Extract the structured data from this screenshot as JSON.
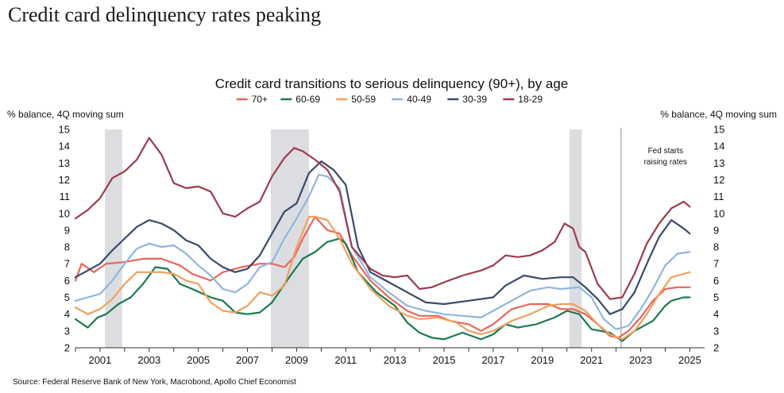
{
  "page": {
    "headline": "Credit card delinquency rates peaking",
    "source": "Source: Federal Reserve Bank of New York, Macrobond, Apollo Chief Economist"
  },
  "chart_data": {
    "type": "line",
    "title": "Credit card transitions to serious delinquency (90+), by age",
    "ylabel_left": "% balance, 4Q moving sum",
    "ylabel_right": "% balance, 4Q moving sum",
    "xlim": [
      2000.0,
      2025.6
    ],
    "ylim": [
      2,
      15
    ],
    "x_ticks": [
      2001,
      2003,
      2005,
      2007,
      2009,
      2011,
      2013,
      2015,
      2017,
      2019,
      2021,
      2023,
      2025
    ],
    "y_ticks": [
      2,
      3,
      4,
      5,
      6,
      7,
      8,
      9,
      10,
      11,
      12,
      13,
      14,
      15
    ],
    "recessions": [
      [
        2001.2,
        2001.9
      ],
      [
        2007.95,
        2009.5
      ],
      [
        2020.1,
        2020.6
      ]
    ],
    "annotation": {
      "x": 2022.2,
      "text": "Fed starts raising rates"
    },
    "legend_position": "top-center",
    "series": [
      {
        "name": "70+",
        "color": "#e8665a",
        "x": [
          2000.0,
          2000.25,
          2000.75,
          2001.25,
          2002.0,
          2002.75,
          2003.5,
          2004.25,
          2004.75,
          2005.5,
          2006.0,
          2006.75,
          2007.5,
          2008.0,
          2008.5,
          2008.9,
          2009.25,
          2009.75,
          2010.25,
          2010.75,
          2011.25,
          2012.0,
          2012.75,
          2013.5,
          2014.0,
          2014.75,
          2015.25,
          2016.0,
          2016.5,
          2017.0,
          2017.75,
          2018.5,
          2019.25,
          2019.75,
          2020.25,
          2020.75,
          2021.25,
          2021.75,
          2022.1,
          2022.5,
          2023.0,
          2023.5,
          2024.0,
          2024.5,
          2025.0
        ],
        "y": [
          6.0,
          7.0,
          6.5,
          7.0,
          7.1,
          7.3,
          7.3,
          6.9,
          6.4,
          6.0,
          6.5,
          6.8,
          7.0,
          7.0,
          6.8,
          7.4,
          8.5,
          9.8,
          9.0,
          8.8,
          7.5,
          6.0,
          5.0,
          4.2,
          3.9,
          3.9,
          3.6,
          3.4,
          3.0,
          3.4,
          4.3,
          4.6,
          4.6,
          4.3,
          4.3,
          4.0,
          3.4,
          2.7,
          2.6,
          3.0,
          3.8,
          4.8,
          5.5,
          5.6,
          5.6
        ]
      },
      {
        "name": "60-69",
        "color": "#1a7a4c",
        "x": [
          2000.0,
          2000.5,
          2000.9,
          2001.25,
          2001.75,
          2002.25,
          2002.75,
          2003.25,
          2003.75,
          2004.25,
          2004.75,
          2005.5,
          2006.0,
          2006.5,
          2007.0,
          2007.5,
          2008.0,
          2008.75,
          2009.25,
          2009.75,
          2010.25,
          2010.75,
          2011.0,
          2011.5,
          2012.25,
          2013.0,
          2013.5,
          2014.0,
          2014.5,
          2015.0,
          2015.75,
          2016.5,
          2017.0,
          2017.5,
          2018.0,
          2018.75,
          2019.5,
          2020.0,
          2020.5,
          2021.0,
          2021.75,
          2022.25,
          2022.75,
          2023.5,
          2024.0,
          2024.25,
          2024.75,
          2025.0
        ],
        "y": [
          3.7,
          3.2,
          3.8,
          4.0,
          4.6,
          5.0,
          5.8,
          6.8,
          6.7,
          5.8,
          5.5,
          5.0,
          4.8,
          4.1,
          4.0,
          4.1,
          4.7,
          6.3,
          7.3,
          7.7,
          8.3,
          8.5,
          8.2,
          6.5,
          5.3,
          4.5,
          3.5,
          2.9,
          2.6,
          2.5,
          2.9,
          2.5,
          2.8,
          3.4,
          3.2,
          3.4,
          3.8,
          4.2,
          4.0,
          3.1,
          2.9,
          2.4,
          3.0,
          3.6,
          4.5,
          4.8,
          5.0,
          5.0
        ]
      },
      {
        "name": "50-59",
        "color": "#f0a060",
        "x": [
          2000.0,
          2000.5,
          2001.0,
          2001.5,
          2002.0,
          2002.5,
          2003.0,
          2003.5,
          2004.0,
          2004.5,
          2005.0,
          2005.5,
          2006.0,
          2006.5,
          2007.0,
          2007.5,
          2008.0,
          2008.5,
          2009.0,
          2009.5,
          2009.75,
          2010.25,
          2010.75,
          2011.25,
          2012.0,
          2012.75,
          2013.5,
          2014.0,
          2014.75,
          2015.5,
          2016.0,
          2016.5,
          2017.0,
          2017.75,
          2018.5,
          2019.25,
          2019.75,
          2020.25,
          2020.75,
          2021.25,
          2021.75,
          2022.25,
          2022.75,
          2023.25,
          2023.75,
          2024.25,
          2024.75,
          2025.0
        ],
        "y": [
          4.4,
          4.0,
          4.3,
          4.9,
          5.8,
          6.5,
          6.5,
          6.5,
          6.4,
          6.0,
          5.8,
          4.7,
          4.2,
          4.1,
          4.5,
          5.3,
          5.1,
          5.7,
          8.0,
          9.8,
          9.8,
          9.6,
          8.5,
          7.0,
          5.5,
          4.5,
          3.9,
          3.7,
          3.8,
          3.5,
          3.0,
          2.8,
          3.0,
          3.6,
          4.0,
          4.5,
          4.6,
          4.6,
          4.2,
          3.4,
          2.8,
          2.5,
          3.0,
          4.0,
          5.2,
          6.2,
          6.4,
          6.5
        ]
      },
      {
        "name": "40-49",
        "color": "#8fb5df",
        "x": [
          2000.0,
          2000.5,
          2001.0,
          2001.5,
          2002.0,
          2002.5,
          2003.0,
          2003.5,
          2004.0,
          2004.5,
          2005.0,
          2005.5,
          2006.0,
          2006.5,
          2007.0,
          2007.5,
          2008.0,
          2008.5,
          2009.0,
          2009.5,
          2009.9,
          2010.25,
          2010.75,
          2011.25,
          2012.0,
          2012.75,
          2013.5,
          2014.25,
          2015.0,
          2015.75,
          2016.5,
          2017.0,
          2017.75,
          2018.5,
          2019.25,
          2019.75,
          2020.5,
          2021.0,
          2021.5,
          2022.0,
          2022.5,
          2023.0,
          2023.5,
          2024.0,
          2024.5,
          2025.0
        ],
        "y": [
          4.8,
          5.0,
          5.2,
          6.0,
          7.0,
          7.9,
          8.2,
          8.0,
          8.1,
          7.6,
          6.9,
          6.3,
          5.5,
          5.3,
          5.8,
          6.8,
          7.1,
          8.5,
          9.7,
          11.0,
          12.3,
          12.2,
          11.5,
          8.0,
          6.2,
          5.3,
          4.5,
          4.2,
          4.0,
          3.9,
          3.8,
          4.2,
          4.8,
          5.4,
          5.6,
          5.5,
          5.6,
          5.0,
          3.7,
          3.1,
          3.3,
          4.3,
          5.5,
          6.9,
          7.6,
          7.7
        ]
      },
      {
        "name": "30-39",
        "color": "#3a4a6b",
        "x": [
          2000.0,
          2000.5,
          2001.0,
          2001.5,
          2002.0,
          2002.5,
          2003.0,
          2003.5,
          2004.0,
          2004.5,
          2005.0,
          2005.5,
          2006.0,
          2006.5,
          2007.0,
          2007.5,
          2008.0,
          2008.5,
          2009.0,
          2009.5,
          2010.0,
          2010.5,
          2011.0,
          2011.5,
          2012.0,
          2012.75,
          2013.5,
          2014.25,
          2015.0,
          2016.0,
          2017.0,
          2017.5,
          2018.25,
          2019.0,
          2019.75,
          2020.25,
          2020.75,
          2021.25,
          2021.75,
          2022.25,
          2022.75,
          2023.25,
          2023.75,
          2024.25,
          2024.75,
          2025.0
        ],
        "y": [
          6.2,
          6.6,
          7.0,
          7.8,
          8.5,
          9.2,
          9.6,
          9.4,
          9.0,
          8.4,
          8.1,
          7.3,
          6.8,
          6.5,
          6.7,
          7.5,
          8.8,
          10.1,
          10.6,
          12.4,
          13.1,
          12.6,
          11.7,
          8.0,
          6.5,
          5.9,
          5.3,
          4.7,
          4.6,
          4.8,
          5.0,
          5.7,
          6.3,
          6.1,
          6.2,
          6.2,
          5.6,
          4.9,
          4.0,
          4.3,
          5.3,
          7.0,
          8.6,
          9.6,
          9.1,
          8.8
        ]
      },
      {
        "name": "18-29",
        "color": "#9e3a4f",
        "x": [
          2000.0,
          2000.5,
          2001.0,
          2001.5,
          2002.0,
          2002.5,
          2003.0,
          2003.5,
          2004.0,
          2004.5,
          2005.0,
          2005.5,
          2006.0,
          2006.5,
          2007.0,
          2007.5,
          2008.0,
          2008.5,
          2008.9,
          2009.25,
          2009.75,
          2010.25,
          2010.75,
          2011.25,
          2012.0,
          2012.5,
          2013.0,
          2013.5,
          2014.0,
          2014.5,
          2015.0,
          2015.75,
          2016.5,
          2017.0,
          2017.5,
          2018.0,
          2018.5,
          2019.0,
          2019.5,
          2019.9,
          2020.25,
          2020.5,
          2020.75,
          2021.25,
          2021.75,
          2022.25,
          2022.75,
          2023.25,
          2023.75,
          2024.25,
          2024.75,
          2025.0
        ],
        "y": [
          9.7,
          10.2,
          10.9,
          12.1,
          12.5,
          13.2,
          14.5,
          13.5,
          11.8,
          11.5,
          11.6,
          11.3,
          10.0,
          9.8,
          10.3,
          10.7,
          12.2,
          13.3,
          13.9,
          13.7,
          13.2,
          12.6,
          11.3,
          8.0,
          6.7,
          6.3,
          6.2,
          6.3,
          5.5,
          5.6,
          5.9,
          6.3,
          6.6,
          6.9,
          7.5,
          7.4,
          7.5,
          7.8,
          8.3,
          9.4,
          9.1,
          8.0,
          7.7,
          5.8,
          4.9,
          5.0,
          6.4,
          8.2,
          9.4,
          10.3,
          10.7,
          10.4
        ]
      }
    ]
  }
}
